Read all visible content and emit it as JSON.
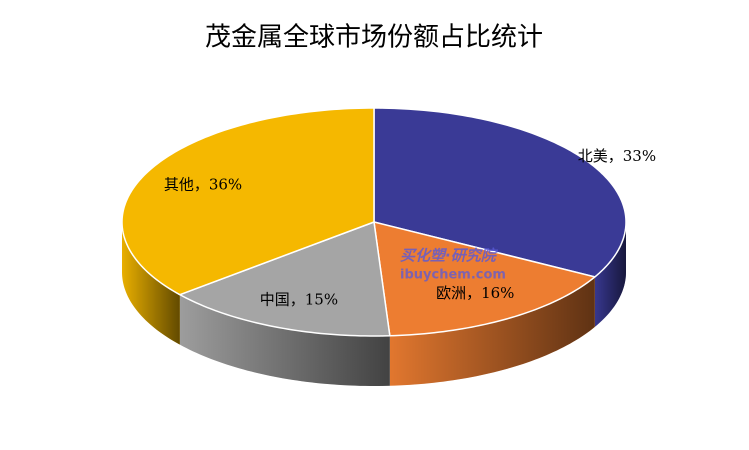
{
  "chart_data": {
    "type": "pie",
    "title": "茂金属全球市场份额占比统计",
    "categories": [
      "北美",
      "欧洲",
      "中国",
      "其他"
    ],
    "values": [
      33,
      16,
      15,
      36
    ],
    "value_labels": [
      "北美，33%",
      "欧洲，16%",
      "中国，15%",
      "其他，36%"
    ],
    "colors": [
      "#3a3a96",
      "#ed7d31",
      "#a5a5a5",
      "#f5b800"
    ],
    "watermark": {
      "line1": "买化塑·研究院",
      "line2": "ibuychem.com"
    }
  }
}
